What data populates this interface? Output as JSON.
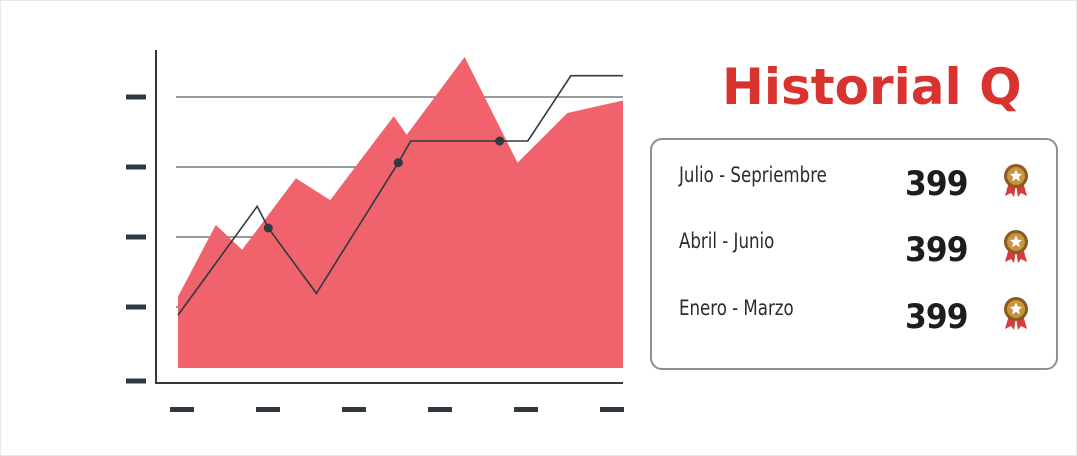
{
  "header": {
    "title": "Historial Q"
  },
  "colors": {
    "title": "#d9332f",
    "area": "#f0636d",
    "line": "#2e3a40",
    "axis": "#2e3a40"
  },
  "history": {
    "rows": [
      {
        "label": "Julio - Sepriembre",
        "value": "399",
        "icon": "medal-icon"
      },
      {
        "label": "Abril - Junio",
        "value": "399",
        "icon": "medal-icon"
      },
      {
        "label": "Enero - Marzo",
        "value": "399",
        "icon": "medal-icon"
      }
    ]
  },
  "chart_data": {
    "type": "area",
    "title": "",
    "xlabel": "",
    "ylabel": "",
    "xlim": [
      0,
      100
    ],
    "ylim": [
      0,
      100
    ],
    "grid": true,
    "y_ticks": 5,
    "x_ticks": 6,
    "tick_labels": "none",
    "area_series": {
      "x": [
        0,
        8.5,
        14.4,
        26.5,
        34.2,
        48.5,
        51.4,
        64.4,
        76.3,
        87.5,
        100
      ],
      "y": [
        23,
        46,
        38,
        61,
        54,
        81,
        75,
        100,
        66,
        82,
        86
      ]
    },
    "line_series": {
      "x": [
        0,
        17.8,
        20.3,
        31.1,
        49.5,
        52.3,
        72.3,
        78.6,
        88.3,
        100
      ],
      "y": [
        17,
        52,
        45,
        24,
        66,
        73,
        73,
        73,
        94,
        94
      ],
      "markers": [
        {
          "x": 20.3,
          "y": 45
        },
        {
          "x": 49.5,
          "y": 66
        },
        {
          "x": 72.3,
          "y": 73
        }
      ]
    }
  }
}
